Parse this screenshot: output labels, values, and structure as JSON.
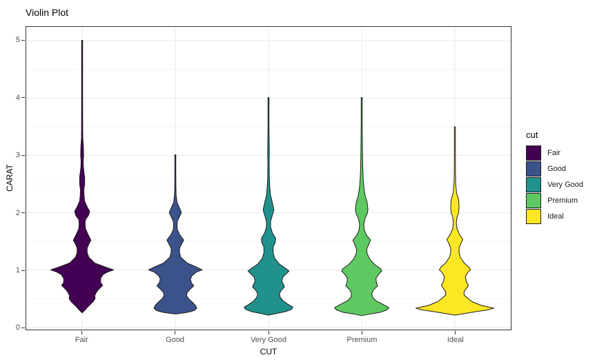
{
  "title": "Violin Plot",
  "x_axis": {
    "title": "CUT",
    "categories": [
      "Fair",
      "Good",
      "Very Good",
      "Premium",
      "Ideal"
    ]
  },
  "y_axis": {
    "title": "CARAT",
    "ticks": [
      "0",
      "1",
      "2",
      "3",
      "4",
      "5"
    ]
  },
  "legend": {
    "title": "cut",
    "entries": [
      {
        "label": "Fair",
        "color": "#440154"
      },
      {
        "label": "Good",
        "color": "#3B528B"
      },
      {
        "label": "Very Good",
        "color": "#21918C"
      },
      {
        "label": "Premium",
        "color": "#5EC962"
      },
      {
        "label": "Ideal",
        "color": "#FDE725"
      }
    ]
  },
  "chart_data": {
    "type": "violin",
    "title": "Violin Plot",
    "xlabel": "CUT",
    "ylabel": "CARAT",
    "categories": [
      "Fair",
      "Good",
      "Very Good",
      "Premium",
      "Ideal"
    ],
    "ylim": [
      -0.05,
      5.25
    ],
    "y_ticks": [
      0,
      1,
      2,
      3,
      4,
      5
    ],
    "y_minor_ticks": [
      0.5,
      1.5,
      2.5,
      3.5,
      4.5
    ],
    "grid": true,
    "legend_position": "right",
    "outline_color": "#1a1a1a",
    "grid_major_color": "#e8e8e8",
    "grid_minor_color": "#f3f3f3",
    "series": [
      {
        "name": "Fair",
        "color": "#440154",
        "carat_min": 0.25,
        "carat_max": 5.01,
        "profile": [
          [
            5.01,
            0.012
          ],
          [
            4.5,
            0.012
          ],
          [
            4.0,
            0.012
          ],
          [
            3.6,
            0.013
          ],
          [
            3.3,
            0.016
          ],
          [
            3.15,
            0.03
          ],
          [
            3.0,
            0.035
          ],
          [
            2.9,
            0.025
          ],
          [
            2.8,
            0.03
          ],
          [
            2.7,
            0.045
          ],
          [
            2.62,
            0.06
          ],
          [
            2.5,
            0.06
          ],
          [
            2.4,
            0.04
          ],
          [
            2.3,
            0.045
          ],
          [
            2.2,
            0.06
          ],
          [
            2.1,
            0.12
          ],
          [
            2.02,
            0.18
          ],
          [
            1.95,
            0.15
          ],
          [
            1.88,
            0.08
          ],
          [
            1.8,
            0.07
          ],
          [
            1.72,
            0.08
          ],
          [
            1.62,
            0.14
          ],
          [
            1.52,
            0.21
          ],
          [
            1.45,
            0.16
          ],
          [
            1.38,
            0.12
          ],
          [
            1.3,
            0.12
          ],
          [
            1.22,
            0.16
          ],
          [
            1.12,
            0.3
          ],
          [
            1.05,
            0.55
          ],
          [
            1.0,
            0.75
          ],
          [
            0.96,
            0.6
          ],
          [
            0.92,
            0.5
          ],
          [
            0.85,
            0.44
          ],
          [
            0.78,
            0.44
          ],
          [
            0.73,
            0.49
          ],
          [
            0.68,
            0.42
          ],
          [
            0.62,
            0.35
          ],
          [
            0.55,
            0.3
          ],
          [
            0.5,
            0.31
          ],
          [
            0.45,
            0.27
          ],
          [
            0.4,
            0.2
          ],
          [
            0.35,
            0.13
          ],
          [
            0.3,
            0.07
          ],
          [
            0.27,
            0.03
          ],
          [
            0.25,
            0.0
          ]
        ]
      },
      {
        "name": "Good",
        "color": "#3B528B",
        "carat_min": 0.23,
        "carat_max": 3.01,
        "profile": [
          [
            3.01,
            0.012
          ],
          [
            2.7,
            0.012
          ],
          [
            2.45,
            0.014
          ],
          [
            2.3,
            0.02
          ],
          [
            2.18,
            0.04
          ],
          [
            2.08,
            0.1
          ],
          [
            2.0,
            0.145
          ],
          [
            1.93,
            0.1
          ],
          [
            1.85,
            0.05
          ],
          [
            1.78,
            0.04
          ],
          [
            1.7,
            0.05
          ],
          [
            1.62,
            0.1
          ],
          [
            1.52,
            0.2
          ],
          [
            1.45,
            0.15
          ],
          [
            1.38,
            0.1
          ],
          [
            1.3,
            0.1
          ],
          [
            1.22,
            0.13
          ],
          [
            1.12,
            0.28
          ],
          [
            1.05,
            0.5
          ],
          [
            1.0,
            0.64
          ],
          [
            0.96,
            0.5
          ],
          [
            0.9,
            0.4
          ],
          [
            0.84,
            0.36
          ],
          [
            0.78,
            0.38
          ],
          [
            0.72,
            0.44
          ],
          [
            0.66,
            0.35
          ],
          [
            0.6,
            0.28
          ],
          [
            0.55,
            0.27
          ],
          [
            0.5,
            0.31
          ],
          [
            0.44,
            0.4
          ],
          [
            0.38,
            0.48
          ],
          [
            0.33,
            0.51
          ],
          [
            0.29,
            0.45
          ],
          [
            0.26,
            0.3
          ],
          [
            0.24,
            0.12
          ],
          [
            0.23,
            0.0
          ]
        ]
      },
      {
        "name": "Very Good",
        "color": "#21918C",
        "carat_min": 0.2,
        "carat_max": 4.01,
        "profile": [
          [
            4.01,
            0.012
          ],
          [
            3.5,
            0.012
          ],
          [
            3.05,
            0.02
          ],
          [
            2.9,
            0.016
          ],
          [
            2.6,
            0.02
          ],
          [
            2.45,
            0.03
          ],
          [
            2.3,
            0.05
          ],
          [
            2.18,
            0.09
          ],
          [
            2.05,
            0.13
          ],
          [
            1.95,
            0.09
          ],
          [
            1.85,
            0.05
          ],
          [
            1.75,
            0.05
          ],
          [
            1.65,
            0.09
          ],
          [
            1.55,
            0.17
          ],
          [
            1.48,
            0.16
          ],
          [
            1.4,
            0.11
          ],
          [
            1.3,
            0.11
          ],
          [
            1.2,
            0.15
          ],
          [
            1.1,
            0.26
          ],
          [
            1.02,
            0.42
          ],
          [
            0.98,
            0.49
          ],
          [
            0.93,
            0.42
          ],
          [
            0.87,
            0.34
          ],
          [
            0.8,
            0.32
          ],
          [
            0.74,
            0.36
          ],
          [
            0.7,
            0.38
          ],
          [
            0.64,
            0.3
          ],
          [
            0.58,
            0.26
          ],
          [
            0.52,
            0.28
          ],
          [
            0.46,
            0.35
          ],
          [
            0.4,
            0.46
          ],
          [
            0.35,
            0.58
          ],
          [
            0.31,
            0.55
          ],
          [
            0.27,
            0.4
          ],
          [
            0.24,
            0.2
          ],
          [
            0.21,
            0.0
          ]
        ]
      },
      {
        "name": "Premium",
        "color": "#5EC962",
        "carat_min": 0.2,
        "carat_max": 4.01,
        "profile": [
          [
            4.01,
            0.012
          ],
          [
            3.5,
            0.012
          ],
          [
            3.0,
            0.02
          ],
          [
            2.8,
            0.025
          ],
          [
            2.6,
            0.035
          ],
          [
            2.45,
            0.05
          ],
          [
            2.3,
            0.08
          ],
          [
            2.18,
            0.13
          ],
          [
            2.05,
            0.15
          ],
          [
            1.98,
            0.13
          ],
          [
            1.9,
            0.08
          ],
          [
            1.8,
            0.05
          ],
          [
            1.7,
            0.06
          ],
          [
            1.6,
            0.12
          ],
          [
            1.52,
            0.21
          ],
          [
            1.45,
            0.17
          ],
          [
            1.36,
            0.12
          ],
          [
            1.28,
            0.13
          ],
          [
            1.18,
            0.2
          ],
          [
            1.1,
            0.3
          ],
          [
            1.02,
            0.45
          ],
          [
            0.98,
            0.48
          ],
          [
            0.92,
            0.4
          ],
          [
            0.85,
            0.34
          ],
          [
            0.78,
            0.35
          ],
          [
            0.72,
            0.38
          ],
          [
            0.65,
            0.28
          ],
          [
            0.58,
            0.24
          ],
          [
            0.52,
            0.26
          ],
          [
            0.46,
            0.34
          ],
          [
            0.4,
            0.5
          ],
          [
            0.34,
            0.65
          ],
          [
            0.3,
            0.6
          ],
          [
            0.26,
            0.45
          ],
          [
            0.23,
            0.2
          ],
          [
            0.2,
            0.0
          ]
        ]
      },
      {
        "name": "Ideal",
        "color": "#FDE725",
        "carat_min": 0.2,
        "carat_max": 3.5,
        "profile": [
          [
            3.5,
            0.012
          ],
          [
            3.1,
            0.012
          ],
          [
            2.7,
            0.014
          ],
          [
            2.5,
            0.02
          ],
          [
            2.35,
            0.04
          ],
          [
            2.22,
            0.09
          ],
          [
            2.1,
            0.1
          ],
          [
            2.0,
            0.09
          ],
          [
            1.92,
            0.05
          ],
          [
            1.82,
            0.035
          ],
          [
            1.72,
            0.05
          ],
          [
            1.62,
            0.11
          ],
          [
            1.53,
            0.19
          ],
          [
            1.46,
            0.14
          ],
          [
            1.38,
            0.1
          ],
          [
            1.3,
            0.1
          ],
          [
            1.22,
            0.13
          ],
          [
            1.12,
            0.22
          ],
          [
            1.05,
            0.33
          ],
          [
            1.0,
            0.37
          ],
          [
            0.95,
            0.3
          ],
          [
            0.88,
            0.25
          ],
          [
            0.8,
            0.27
          ],
          [
            0.73,
            0.32
          ],
          [
            0.68,
            0.28
          ],
          [
            0.62,
            0.22
          ],
          [
            0.56,
            0.22
          ],
          [
            0.5,
            0.31
          ],
          [
            0.44,
            0.42
          ],
          [
            0.38,
            0.63
          ],
          [
            0.33,
            0.93
          ],
          [
            0.3,
            0.78
          ],
          [
            0.27,
            0.5
          ],
          [
            0.24,
            0.25
          ],
          [
            0.21,
            0.0
          ]
        ]
      }
    ]
  }
}
